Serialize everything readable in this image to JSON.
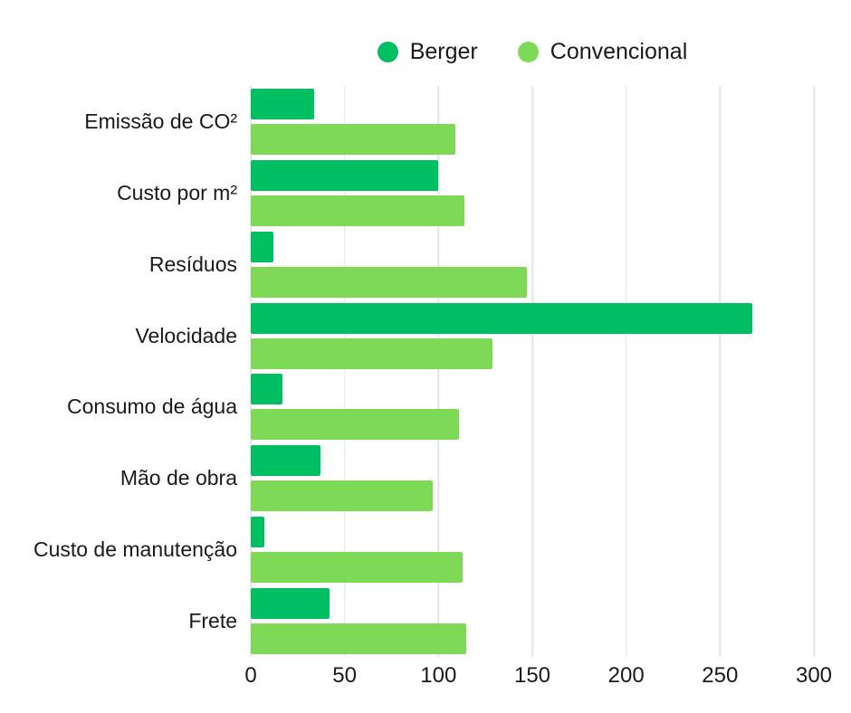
{
  "colors": {
    "berger": "#00BF63",
    "convencional": "#7ED957",
    "gridline": "#e4e4e4",
    "text": "#1a1a1a",
    "background": "#ffffff"
  },
  "chart_data": {
    "type": "bar",
    "orientation": "horizontal",
    "title": "",
    "xlabel": "",
    "ylabel": "",
    "xlim": [
      0,
      300
    ],
    "x_ticks": [
      0,
      50,
      100,
      150,
      200,
      250,
      300
    ],
    "grid": true,
    "legend_position": "top",
    "categories": [
      "Emissão de CO²",
      "Custo por m²",
      "Resíduos",
      "Velocidade",
      "Consumo de água",
      "Mão de obra",
      "Custo de manutenção",
      "Frete"
    ],
    "series": [
      {
        "name": "Berger",
        "color": "#00BF63",
        "values": [
          34,
          100,
          12,
          267,
          17,
          37,
          7,
          42
        ]
      },
      {
        "name": "Convencional",
        "color": "#7ED957",
        "values": [
          109,
          114,
          147,
          129,
          111,
          97,
          113,
          115
        ]
      }
    ]
  }
}
